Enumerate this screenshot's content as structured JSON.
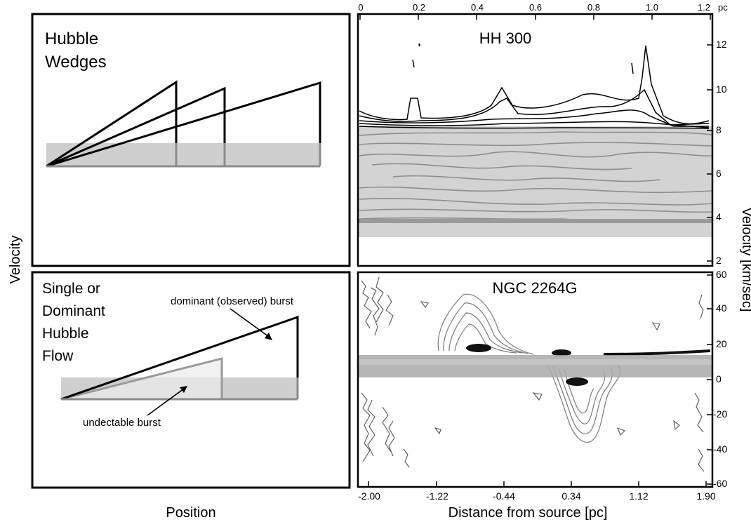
{
  "left_top_panel": {
    "title_line1": "Hubble",
    "title_line2": "Wedges"
  },
  "left_bottom_panel": {
    "title_lines": [
      "Single or",
      "Dominant",
      "Hubble",
      "Flow"
    ],
    "annotation_dominant": "dominant (observed) burst",
    "annotation_undetectable": "undectable burst"
  },
  "left_axes": {
    "ylabel": "Velocity",
    "xlabel": "Position"
  },
  "right_top_panel": {
    "title": "HH 300",
    "top_ticks": [
      "0",
      "0.2",
      "0.4",
      "0.6",
      "0.8",
      "1.0",
      "1.2"
    ],
    "top_unit": "pc",
    "right_ticks": [
      "2",
      "4",
      "6",
      "8",
      "10",
      "12"
    ]
  },
  "right_bottom_panel": {
    "title": "NGC 2264G",
    "right_ticks": [
      "60",
      "40",
      "20",
      "0",
      "-20",
      "-40",
      "-60"
    ],
    "bottom_ticks": [
      "-2.00",
      "-1.22",
      "-0.44",
      "0.34",
      "1.12",
      "1.90"
    ]
  },
  "right_axes": {
    "ylabel": "Velocity  [km/sec]",
    "xlabel": "Distance from source  [pc]"
  },
  "colors": {
    "outline": "#000000",
    "shade": "#cfcfcf",
    "gray_line": "#8c8c8c",
    "light_wedge": "#ececec"
  }
}
